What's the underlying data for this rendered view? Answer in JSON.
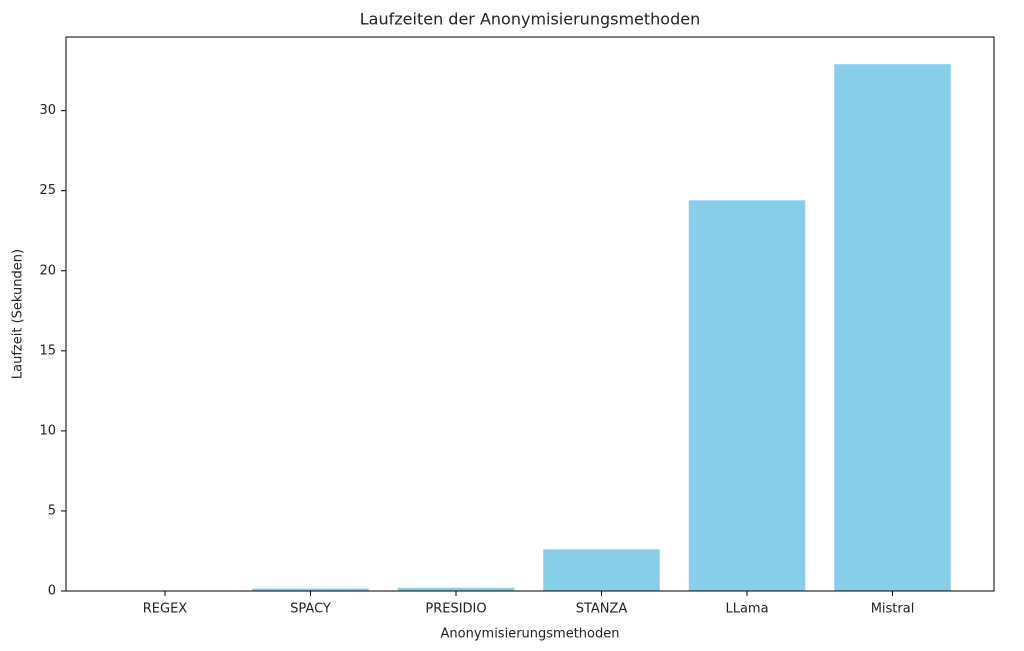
{
  "chart_data": {
    "type": "bar",
    "title": "Laufzeiten der Anonymisierungsmethoden",
    "x_label": "Anonymisierungsmethoden",
    "y_label": "Laufzeit (Sekunden)",
    "categories": [
      "REGEX",
      "SPACY",
      "PRESIDIO",
      "STANZA",
      "LLama",
      "Mistral"
    ],
    "values": [
      0.01,
      0.15,
      0.2,
      2.6,
      24.4,
      32.9
    ],
    "color": "#87ceeb",
    "ylim": [
      0,
      34.6
    ],
    "yticks": [
      0,
      5,
      10,
      15,
      20,
      25,
      30
    ],
    "grid": false
  }
}
